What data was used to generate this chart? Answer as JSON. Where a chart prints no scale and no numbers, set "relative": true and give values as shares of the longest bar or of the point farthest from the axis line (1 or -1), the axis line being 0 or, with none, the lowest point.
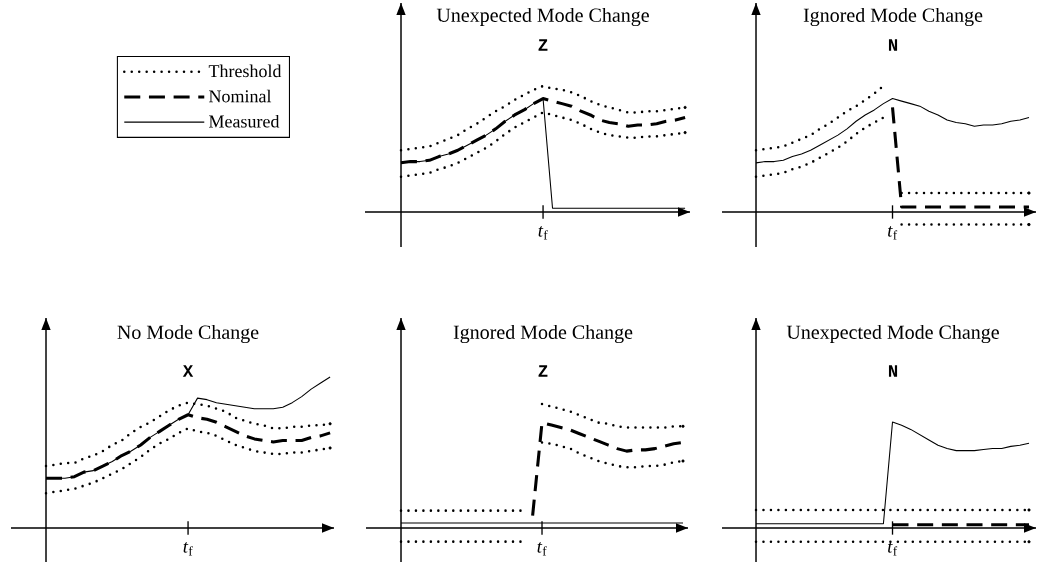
{
  "chart_data": [
    {
      "type": "line",
      "title": "Unexpected Mode Change",
      "subtitle": "Z",
      "relative": true,
      "legend": "left",
      "annotations": [
        "*t*$_{f}$"
      ],
      "categories": [
        null,
        null,
        null,
        null,
        null,
        null,
        null,
        null,
        null,
        null,
        null,
        null,
        null,
        null,
        null,
        null,
        null,
        null,
        null,
        null,
        null,
        null,
        null,
        null,
        null,
        null,
        null,
        null,
        null,
        null,
        null
      ],
      "series": [
        {
          "name": "Threshold",
          "color": "#000000",
          "line_style": "dotted",
          "values": [
            0.49,
            0.5,
            0.51,
            0.52,
            0.55,
            0.58,
            0.61,
            0.66,
            0.7,
            0.75,
            0.8,
            0.84,
            0.89,
            0.93,
            0.97,
            1.0,
            0.98,
            0.97,
            0.95,
            0.92,
            0.88,
            0.85,
            0.83,
            0.81,
            0.79,
            0.79,
            0.8,
            0.8,
            0.81,
            0.82,
            0.83
          ]
        },
        {
          "name": "Nominal",
          "color": "#000000",
          "line_style": "dashed",
          "values": [
            0.39,
            0.4,
            0.4,
            0.41,
            0.44,
            0.46,
            0.49,
            0.53,
            0.57,
            0.61,
            0.66,
            0.72,
            0.77,
            0.81,
            0.86,
            0.9,
            0.88,
            0.86,
            0.84,
            0.8,
            0.77,
            0.73,
            0.71,
            0.7,
            0.68,
            0.69,
            0.69,
            0.7,
            0.72,
            0.73,
            0.75
          ]
        },
        {
          "name": "Measured",
          "color": "#000000",
          "line_style": "solid",
          "values": [
            0.39,
            0.4,
            0.4,
            0.41,
            0.44,
            0.46,
            0.49,
            0.53,
            0.57,
            0.61,
            0.66,
            0.72,
            0.77,
            0.81,
            0.86,
            0.9,
            0.03,
            0.03,
            0.03,
            0.03,
            0.03,
            0.03,
            0.03,
            0.03,
            0.03,
            0.03,
            0.03,
            0.03,
            0.03,
            0.03,
            0.03
          ]
        },
        {
          "color": "#000000",
          "line_style": "dotted",
          "values": [
            0.28,
            0.29,
            0.3,
            0.31,
            0.34,
            0.36,
            0.39,
            0.43,
            0.47,
            0.51,
            0.56,
            0.62,
            0.67,
            0.71,
            0.75,
            0.79,
            0.77,
            0.75,
            0.73,
            0.7,
            0.66,
            0.63,
            0.61,
            0.6,
            0.59,
            0.59,
            0.6,
            0.6,
            0.61,
            0.62,
            0.63
          ]
        }
      ]
    },
    {
      "type": "line",
      "title": "Ignored Mode Change",
      "subtitle": "N",
      "relative": true,
      "annotations": [
        "*t*$_{f}$"
      ],
      "categories": [
        null,
        null,
        null,
        null,
        null,
        null,
        null,
        null,
        null,
        null,
        null,
        null,
        null,
        null,
        null,
        null,
        null,
        null,
        null,
        null,
        null,
        null,
        null,
        null,
        null,
        null,
        null,
        null,
        null,
        null,
        null
      ],
      "series": [
        {
          "color": "#000000",
          "line_style": "dotted",
          "values": [
            0.49,
            0.5,
            0.51,
            0.52,
            0.55,
            0.58,
            0.61,
            0.66,
            0.7,
            0.75,
            0.8,
            0.84,
            0.89,
            0.94,
            1.0,
            null,
            0.15,
            0.15,
            0.15,
            0.15,
            0.15,
            0.15,
            0.15,
            0.15,
            0.15,
            0.15,
            0.15,
            0.15,
            0.15,
            0.15,
            0.15
          ]
        },
        {
          "color": "#000000",
          "line_style": "dashed",
          "values": [
            null,
            null,
            null,
            null,
            null,
            null,
            null,
            null,
            null,
            null,
            null,
            null,
            null,
            null,
            null,
            0.83,
            0.04,
            0.04,
            0.04,
            0.04,
            0.04,
            0.04,
            0.04,
            0.04,
            0.04,
            0.04,
            0.04,
            0.04,
            0.04,
            0.04,
            0.04
          ]
        },
        {
          "color": "#000000",
          "line_style": "solid",
          "values": [
            0.39,
            0.4,
            0.4,
            0.41,
            0.44,
            0.46,
            0.49,
            0.53,
            0.57,
            0.61,
            0.66,
            0.72,
            0.77,
            0.81,
            0.86,
            0.9,
            0.88,
            0.86,
            0.84,
            0.8,
            0.77,
            0.73,
            0.71,
            0.7,
            0.68,
            0.69,
            0.69,
            0.7,
            0.72,
            0.73,
            0.75
          ]
        },
        {
          "color": "#000000",
          "line_style": "dotted",
          "values": [
            0.28,
            0.29,
            0.3,
            0.31,
            0.34,
            0.36,
            0.39,
            0.43,
            0.47,
            0.51,
            0.56,
            0.62,
            0.67,
            0.71,
            0.75,
            null,
            -0.1,
            -0.1,
            -0.1,
            -0.1,
            -0.1,
            -0.1,
            -0.1,
            -0.1,
            -0.1,
            -0.1,
            -0.1,
            -0.1,
            -0.1,
            -0.1,
            -0.1
          ]
        }
      ]
    },
    {
      "type": "line",
      "title": "No Mode Change",
      "subtitle": "X",
      "relative": true,
      "annotations": [
        "*t*$_{f}$"
      ],
      "categories": [
        null,
        null,
        null,
        null,
        null,
        null,
        null,
        null,
        null,
        null,
        null,
        null,
        null,
        null,
        null,
        null,
        null,
        null,
        null,
        null,
        null,
        null,
        null,
        null,
        null,
        null,
        null,
        null,
        null,
        null,
        null
      ],
      "series": [
        {
          "color": "#000000",
          "line_style": "dotted",
          "values": [
            0.41,
            0.42,
            0.43,
            0.43,
            0.46,
            0.48,
            0.51,
            0.55,
            0.58,
            0.63,
            0.67,
            0.7,
            0.74,
            0.78,
            0.81,
            0.83,
            0.82,
            0.81,
            0.79,
            0.77,
            0.73,
            0.71,
            0.69,
            0.68,
            0.66,
            0.66,
            0.67,
            0.67,
            0.68,
            0.68,
            0.69
          ]
        },
        {
          "color": "#000000",
          "line_style": "dashed",
          "values": [
            0.33,
            0.33,
            0.33,
            0.34,
            0.37,
            0.38,
            0.41,
            0.44,
            0.48,
            0.51,
            0.55,
            0.6,
            0.64,
            0.68,
            0.72,
            0.75,
            0.73,
            0.72,
            0.7,
            0.67,
            0.64,
            0.61,
            0.59,
            0.58,
            0.57,
            0.58,
            0.58,
            0.58,
            0.6,
            0.61,
            0.63
          ]
        },
        {
          "color": "#000000",
          "line_style": "solid",
          "values": [
            0.33,
            0.33,
            0.33,
            0.34,
            0.37,
            0.38,
            0.41,
            0.44,
            0.48,
            0.51,
            0.55,
            0.6,
            0.64,
            0.68,
            0.72,
            0.75,
            0.86,
            0.85,
            0.83,
            0.82,
            0.81,
            0.8,
            0.79,
            0.79,
            0.79,
            0.8,
            0.83,
            0.87,
            0.92,
            0.96,
            1.0
          ]
        },
        {
          "color": "#000000",
          "line_style": "dotted",
          "values": [
            0.23,
            0.24,
            0.25,
            0.26,
            0.28,
            0.3,
            0.33,
            0.36,
            0.39,
            0.43,
            0.47,
            0.52,
            0.56,
            0.59,
            0.63,
            0.66,
            0.64,
            0.63,
            0.61,
            0.58,
            0.55,
            0.53,
            0.51,
            0.5,
            0.49,
            0.49,
            0.5,
            0.5,
            0.51,
            0.52,
            0.53
          ]
        }
      ]
    },
    {
      "type": "line",
      "title": "Ignored Mode Change",
      "subtitle": "Z",
      "relative": true,
      "annotations": [
        "*t*$_{f}$"
      ],
      "categories": [
        null,
        null,
        null,
        null,
        null,
        null,
        null,
        null,
        null,
        null,
        null,
        null,
        null,
        null,
        null,
        null,
        null,
        null,
        null,
        null,
        null,
        null,
        null,
        null,
        null,
        null,
        null,
        null,
        null,
        null,
        null
      ],
      "series": [
        {
          "color": "#000000",
          "line_style": "dotted",
          "values": [
            0.14,
            0.14,
            0.14,
            0.14,
            0.14,
            0.14,
            0.14,
            0.14,
            0.14,
            0.14,
            0.14,
            0.14,
            0.14,
            0.14,
            null,
            1.0,
            0.98,
            0.96,
            0.94,
            0.91,
            0.88,
            0.85,
            0.84,
            0.82,
            0.81,
            0.81,
            0.81,
            0.81,
            0.81,
            0.82,
            0.82
          ]
        },
        {
          "color": "#000000",
          "line_style": "dashed",
          "values": [
            null,
            null,
            null,
            null,
            null,
            null,
            null,
            null,
            null,
            null,
            null,
            null,
            null,
            null,
            0.1,
            0.85,
            0.83,
            0.81,
            0.79,
            0.76,
            0.73,
            0.7,
            0.67,
            0.64,
            0.62,
            0.63,
            0.63,
            0.64,
            0.66,
            0.68,
            0.69
          ]
        },
        {
          "color": "#000000",
          "line_style": "solid",
          "values": [
            0.04,
            0.04,
            0.04,
            0.04,
            0.04,
            0.04,
            0.04,
            0.04,
            0.04,
            0.04,
            0.04,
            0.04,
            0.04,
            0.04,
            0.04,
            0.04,
            0.04,
            0.04,
            0.04,
            0.04,
            0.04,
            0.04,
            0.04,
            0.04,
            0.04,
            0.04,
            0.04,
            0.04,
            0.04,
            0.04,
            0.04
          ]
        },
        {
          "color": "#000000",
          "line_style": "dotted",
          "values": [
            -0.11,
            -0.11,
            -0.11,
            -0.11,
            -0.11,
            -0.11,
            -0.11,
            -0.11,
            -0.11,
            -0.11,
            -0.11,
            -0.11,
            -0.11,
            -0.11,
            null,
            0.69,
            0.68,
            0.66,
            0.64,
            0.6,
            0.57,
            0.54,
            0.52,
            0.5,
            0.49,
            0.49,
            0.5,
            0.5,
            0.51,
            0.53,
            0.54
          ]
        }
      ]
    },
    {
      "type": "line",
      "title": "Unexpected Mode Change",
      "subtitle": "N",
      "relative": true,
      "annotations": [
        "*t*$_{f}$"
      ],
      "categories": [
        null,
        null,
        null,
        null,
        null,
        null,
        null,
        null,
        null,
        null,
        null,
        null,
        null,
        null,
        null,
        null,
        null,
        null,
        null,
        null,
        null,
        null,
        null,
        null,
        null,
        null,
        null,
        null,
        null,
        null,
        null
      ],
      "series": [
        {
          "color": "#000000",
          "line_style": "dotted",
          "values": [
            0.17,
            0.17,
            0.17,
            0.17,
            0.17,
            0.17,
            0.17,
            0.17,
            0.17,
            0.17,
            0.17,
            0.17,
            0.17,
            0.17,
            0.17,
            0.17,
            0.17,
            0.17,
            0.17,
            0.17,
            0.17,
            0.17,
            0.17,
            0.17,
            0.17,
            0.17,
            0.17,
            0.17,
            0.17,
            0.17,
            0.17
          ]
        },
        {
          "color": "#000000",
          "line_style": "dashed",
          "values": [
            null,
            null,
            null,
            null,
            null,
            null,
            null,
            null,
            null,
            null,
            null,
            null,
            null,
            null,
            null,
            0.03,
            0.03,
            0.03,
            0.03,
            0.03,
            0.03,
            0.03,
            0.03,
            0.03,
            0.03,
            0.03,
            0.03,
            0.03,
            0.03,
            0.03,
            0.03
          ]
        },
        {
          "color": "#000000",
          "line_style": "solid",
          "values": [
            0.04,
            0.04,
            0.04,
            0.04,
            0.04,
            0.04,
            0.04,
            0.04,
            0.04,
            0.04,
            0.04,
            0.04,
            0.04,
            0.04,
            0.04,
            1.0,
            0.97,
            0.93,
            0.88,
            0.83,
            0.78,
            0.75,
            0.73,
            0.73,
            0.73,
            0.74,
            0.75,
            0.75,
            0.77,
            0.78,
            0.8
          ]
        },
        {
          "color": "#000000",
          "line_style": "dotted",
          "values": [
            -0.13,
            -0.13,
            -0.13,
            -0.13,
            -0.13,
            -0.13,
            -0.13,
            -0.13,
            -0.13,
            -0.13,
            -0.13,
            -0.13,
            -0.13,
            -0.13,
            -0.13,
            -0.13,
            -0.13,
            -0.13,
            -0.13,
            -0.13,
            -0.13,
            -0.13,
            -0.13,
            -0.13,
            -0.13,
            -0.13,
            -0.13,
            -0.13,
            -0.13,
            -0.13,
            -0.13
          ]
        }
      ]
    }
  ]
}
